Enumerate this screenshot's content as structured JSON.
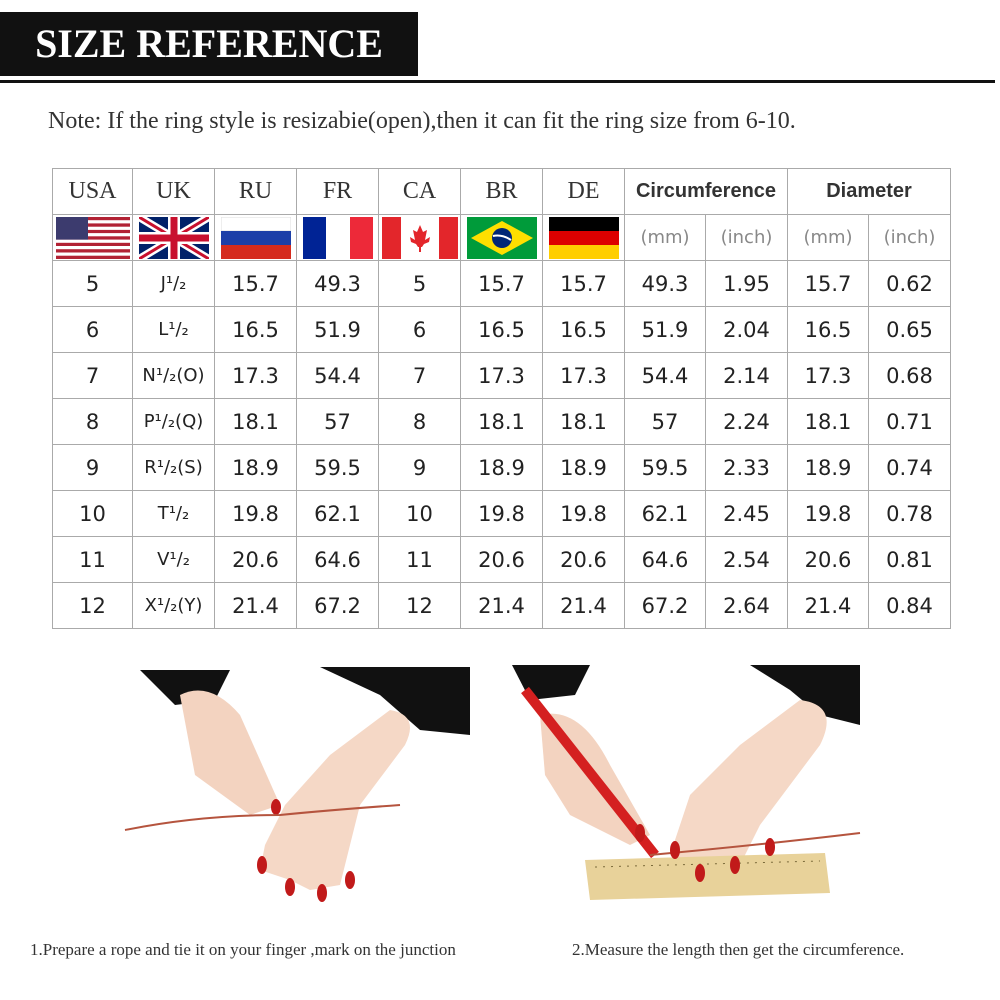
{
  "header": {
    "title": "SIZE REFERENCE"
  },
  "note": "Note: If the ring style is resizabie(open),then it can fit the ring size from 6-10.",
  "table": {
    "headers": [
      "USA",
      "UK",
      "RU",
      "FR",
      "CA",
      "BR",
      "DE",
      "Circumference",
      "Diameter"
    ],
    "units": [
      "(mm)",
      "(inch)",
      "(mm)",
      "(inch)"
    ],
    "rows": [
      [
        5,
        "J¹/₂",
        15.7,
        49.3,
        5,
        15.7,
        15.7,
        49.3,
        1.95,
        15.7,
        0.62
      ],
      [
        6,
        "L¹/₂",
        16.5,
        51.9,
        6,
        16.5,
        16.5,
        51.9,
        2.04,
        16.5,
        0.65
      ],
      [
        7,
        "N¹/₂(O)",
        17.3,
        54.4,
        7,
        17.3,
        17.3,
        54.4,
        2.14,
        17.3,
        0.68
      ],
      [
        8,
        "P¹/₂(Q)",
        18.1,
        57,
        8,
        18.1,
        18.1,
        57,
        2.24,
        18.1,
        0.71
      ],
      [
        9,
        "R¹/₂(S)",
        18.9,
        59.5,
        9,
        18.9,
        18.9,
        59.5,
        2.33,
        18.9,
        0.74
      ],
      [
        10,
        "T¹/₂",
        19.8,
        62.1,
        10,
        19.8,
        19.8,
        62.1,
        2.45,
        19.8,
        0.78
      ],
      [
        11,
        "V¹/₂",
        20.6,
        64.6,
        11,
        20.6,
        20.6,
        64.6,
        2.54,
        20.6,
        0.81
      ],
      [
        12,
        "X¹/₂(Y)",
        21.4,
        67.2,
        12,
        21.4,
        21.4,
        67.2,
        2.64,
        21.4,
        0.84
      ]
    ]
  },
  "captions": [
    "1.Prepare a rope and tie it on your finger ,mark on the junction",
    "2.Measure the length then get the circumference."
  ]
}
